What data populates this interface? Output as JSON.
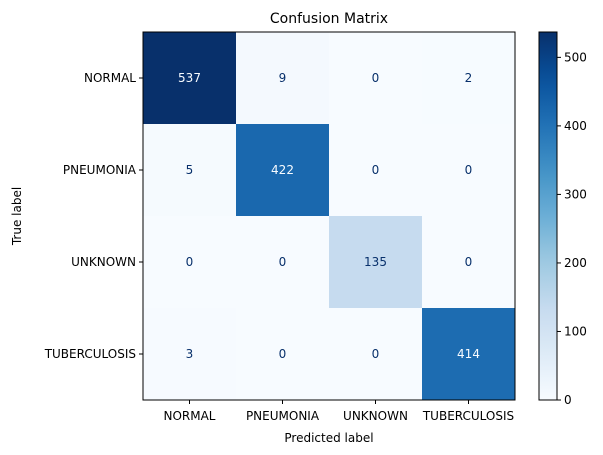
{
  "chart_data": {
    "type": "heatmap",
    "title": "Confusion Matrix",
    "xlabel": "Predicted label",
    "ylabel": "True label",
    "x_categories": [
      "NORMAL",
      "PNEUMONIA",
      "UNKNOWN",
      "TUBERCULOSIS"
    ],
    "y_categories": [
      "NORMAL",
      "PNEUMONIA",
      "UNKNOWN",
      "TUBERCULOSIS"
    ],
    "values": [
      [
        537,
        9,
        0,
        2
      ],
      [
        5,
        422,
        0,
        0
      ],
      [
        0,
        0,
        135,
        0
      ],
      [
        3,
        0,
        0,
        414
      ]
    ],
    "colormap": "Blues",
    "color_range": [
      0,
      537
    ],
    "colorbar_ticks": [
      0,
      100,
      200,
      300,
      400,
      500
    ],
    "grid": false
  }
}
